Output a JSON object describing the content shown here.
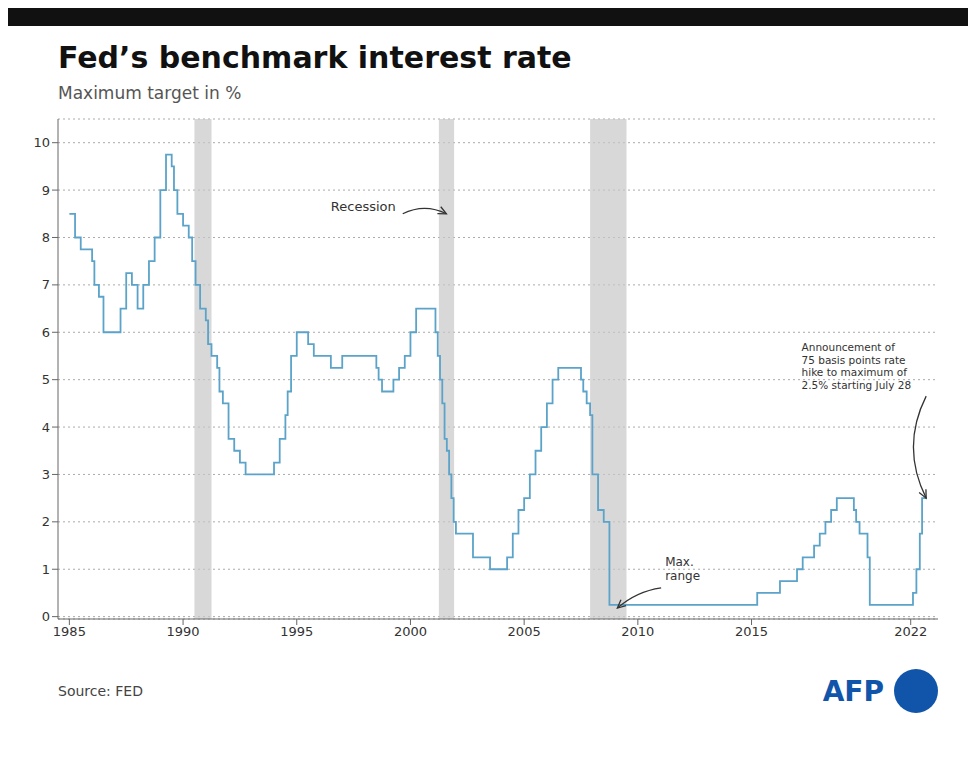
{
  "chart_data": {
    "type": "step",
    "title": "Fed’s benchmark interest rate",
    "subtitle": "Maximum target in %",
    "source": "Source: FED",
    "logo": {
      "text": "AFP",
      "color": "#1155aa"
    },
    "color": "#5ba3c9",
    "x": [
      1985.0,
      1985.25,
      1985.5,
      1985.75,
      1986.0,
      1986.1,
      1986.3,
      1986.5,
      1986.75,
      1987.0,
      1987.25,
      1987.5,
      1987.75,
      1988.0,
      1988.25,
      1988.5,
      1988.75,
      1989.0,
      1989.25,
      1989.5,
      1989.6,
      1989.75,
      1990.0,
      1990.25,
      1990.4,
      1990.55,
      1990.75,
      1991.0,
      1991.1,
      1991.25,
      1991.5,
      1991.6,
      1991.75,
      1992.0,
      1992.25,
      1992.5,
      1992.75,
      1993.0,
      1993.5,
      1994.0,
      1994.25,
      1994.5,
      1994.6,
      1994.75,
      1995.0,
      1995.25,
      1995.5,
      1995.75,
      1996.0,
      1996.5,
      1997.0,
      1997.5,
      1998.0,
      1998.5,
      1998.6,
      1998.75,
      1999.0,
      1999.25,
      1999.5,
      1999.75,
      2000.0,
      2000.25,
      2000.5,
      2000.75,
      2001.0,
      2001.1,
      2001.2,
      2001.3,
      2001.4,
      2001.5,
      2001.6,
      2001.7,
      2001.8,
      2001.9,
      2002.0,
      2002.25,
      2002.5,
      2002.75,
      2003.0,
      2003.5,
      2004.0,
      2004.25,
      2004.5,
      2004.75,
      2005.0,
      2005.25,
      2005.5,
      2005.75,
      2006.0,
      2006.25,
      2006.5,
      2006.75,
      2007.0,
      2007.25,
      2007.5,
      2007.6,
      2007.75,
      2007.9,
      2008.0,
      2008.25,
      2008.5,
      2008.75,
      2009.0,
      2009.5,
      2010.0,
      2010.5,
      2011.0,
      2011.5,
      2012.0,
      2012.5,
      2013.0,
      2013.5,
      2014.0,
      2014.5,
      2015.0,
      2015.25,
      2015.75,
      2016.0,
      2016.25,
      2016.75,
      2017.0,
      2017.25,
      2017.5,
      2017.75,
      2018.0,
      2018.25,
      2018.5,
      2018.75,
      2019.0,
      2019.25,
      2019.5,
      2019.6,
      2019.75,
      2020.0,
      2020.1,
      2020.2,
      2020.5,
      2020.75,
      2021.0,
      2021.5,
      2022.0,
      2022.1,
      2022.25,
      2022.4,
      2022.5,
      2022.7
    ],
    "values": [
      8.5,
      8.0,
      7.75,
      7.75,
      7.5,
      7.0,
      6.75,
      6.0,
      6.0,
      6.0,
      6.5,
      7.25,
      7.0,
      6.5,
      7.0,
      7.5,
      8.0,
      9.0,
      9.75,
      9.5,
      9.0,
      8.5,
      8.25,
      8.0,
      7.5,
      7.0,
      6.5,
      6.25,
      5.75,
      5.5,
      5.25,
      4.75,
      4.5,
      3.75,
      3.5,
      3.25,
      3.0,
      3.0,
      3.0,
      3.25,
      3.75,
      4.25,
      4.75,
      5.5,
      6.0,
      6.0,
      5.75,
      5.5,
      5.5,
      5.25,
      5.5,
      5.5,
      5.5,
      5.25,
      5.0,
      4.75,
      4.75,
      5.0,
      5.25,
      5.5,
      6.0,
      6.5,
      6.5,
      6.5,
      6.5,
      6.0,
      5.5,
      5.0,
      4.5,
      3.75,
      3.5,
      3.0,
      2.5,
      2.0,
      1.75,
      1.75,
      1.75,
      1.25,
      1.25,
      1.0,
      1.0,
      1.25,
      1.75,
      2.25,
      2.5,
      3.0,
      3.5,
      4.0,
      4.5,
      5.0,
      5.25,
      5.25,
      5.25,
      5.25,
      5.0,
      4.75,
      4.5,
      4.25,
      3.0,
      2.25,
      2.0,
      0.25,
      0.25,
      0.25,
      0.25,
      0.25,
      0.25,
      0.25,
      0.25,
      0.25,
      0.25,
      0.25,
      0.25,
      0.25,
      0.25,
      0.5,
      0.5,
      0.5,
      0.75,
      0.75,
      1.0,
      1.25,
      1.25,
      1.5,
      1.75,
      2.0,
      2.25,
      2.5,
      2.5,
      2.5,
      2.25,
      2.0,
      1.75,
      1.75,
      1.25,
      0.25,
      0.25,
      0.25,
      0.25,
      0.25,
      0.25,
      0.5,
      1.0,
      1.75,
      2.5,
      2.5
    ],
    "xlim": [
      1984.5,
      2023.2
    ],
    "ylim": [
      -0.05,
      10.5
    ],
    "xticks": [
      1985,
      1990,
      1995,
      2000,
      2005,
      2010,
      2015,
      2022
    ],
    "yticks": [
      0,
      1,
      2,
      3,
      4,
      5,
      6,
      7,
      8,
      9,
      10
    ],
    "grid": true,
    "recessions": {
      "color": "#c8c8c8",
      "spans": [
        [
          1990.5,
          1991.25
        ],
        [
          2001.25,
          2001.92
        ],
        [
          2007.9,
          2009.5
        ]
      ]
    },
    "annotations": [
      {
        "text": "Recession",
        "x": 2001.58,
        "y": 8.5,
        "text_x": 1996.5,
        "text_y": 8.8
      },
      {
        "text": "Max.\nrange",
        "x": 2009.1,
        "y": 0.18,
        "text_x": 2011.2,
        "text_y": 1.3
      },
      {
        "text": "Announcement of\n75 basis points rate\nhike to maximum of\n2.5% starting July 28",
        "x": 2022.68,
        "y": 2.5,
        "text_x": 2017.2,
        "text_y": 5.8
      }
    ]
  }
}
